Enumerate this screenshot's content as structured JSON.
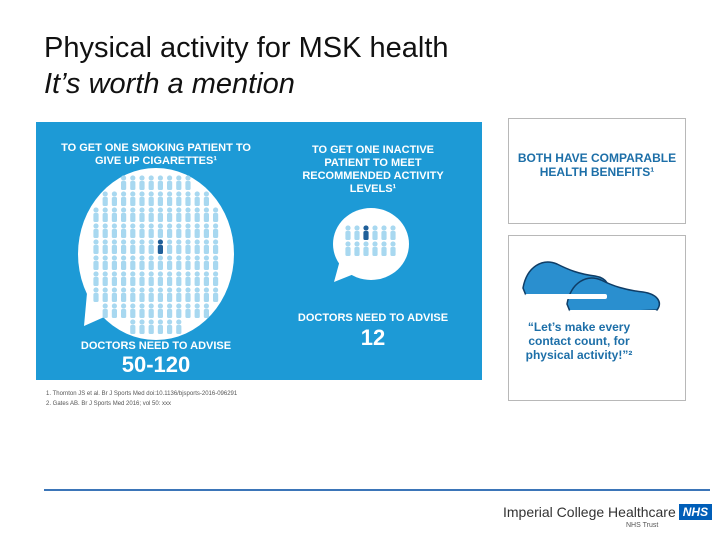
{
  "slide": {
    "title": "Physical activity for MSK health",
    "subtitle": "It’s worth a mention"
  },
  "infographic": {
    "left_heading": "TO GET ONE SMOKING PATIENT TO GIVE UP CIGARETTES¹",
    "right_heading": "TO GET ONE INACTIVE PATIENT TO MEET RECOMMENDED ACTIVITY LEVELS¹",
    "left_advise_label": "DOCTORS NEED TO ADVISE",
    "left_advise_value": "50-120",
    "right_advise_label": "DOCTORS NEED TO ADVISE",
    "right_advise_value": "12",
    "colors": {
      "background": "#1d9ad6",
      "figures": "#a8d8f0",
      "highlight": "#1f5f99"
    }
  },
  "references": {
    "ref1": "1. Thornton JS et al. Br J Sports Med doi:10.1136/bjsports-2016-096291",
    "ref2": "2. Gates AB. Br J Sports Med 2016; vol 50: xxx"
  },
  "benefits_box": {
    "text": "BOTH HAVE COMPARABLE HEALTH BENEFITS¹"
  },
  "quote_box": {
    "text": "“Let’s make every contact count, for physical activity!”²"
  },
  "footer": {
    "org": "Imperial College Healthcare",
    "nhs": "NHS",
    "trust": "NHS Trust",
    "rule_color": "#3b75b8"
  }
}
